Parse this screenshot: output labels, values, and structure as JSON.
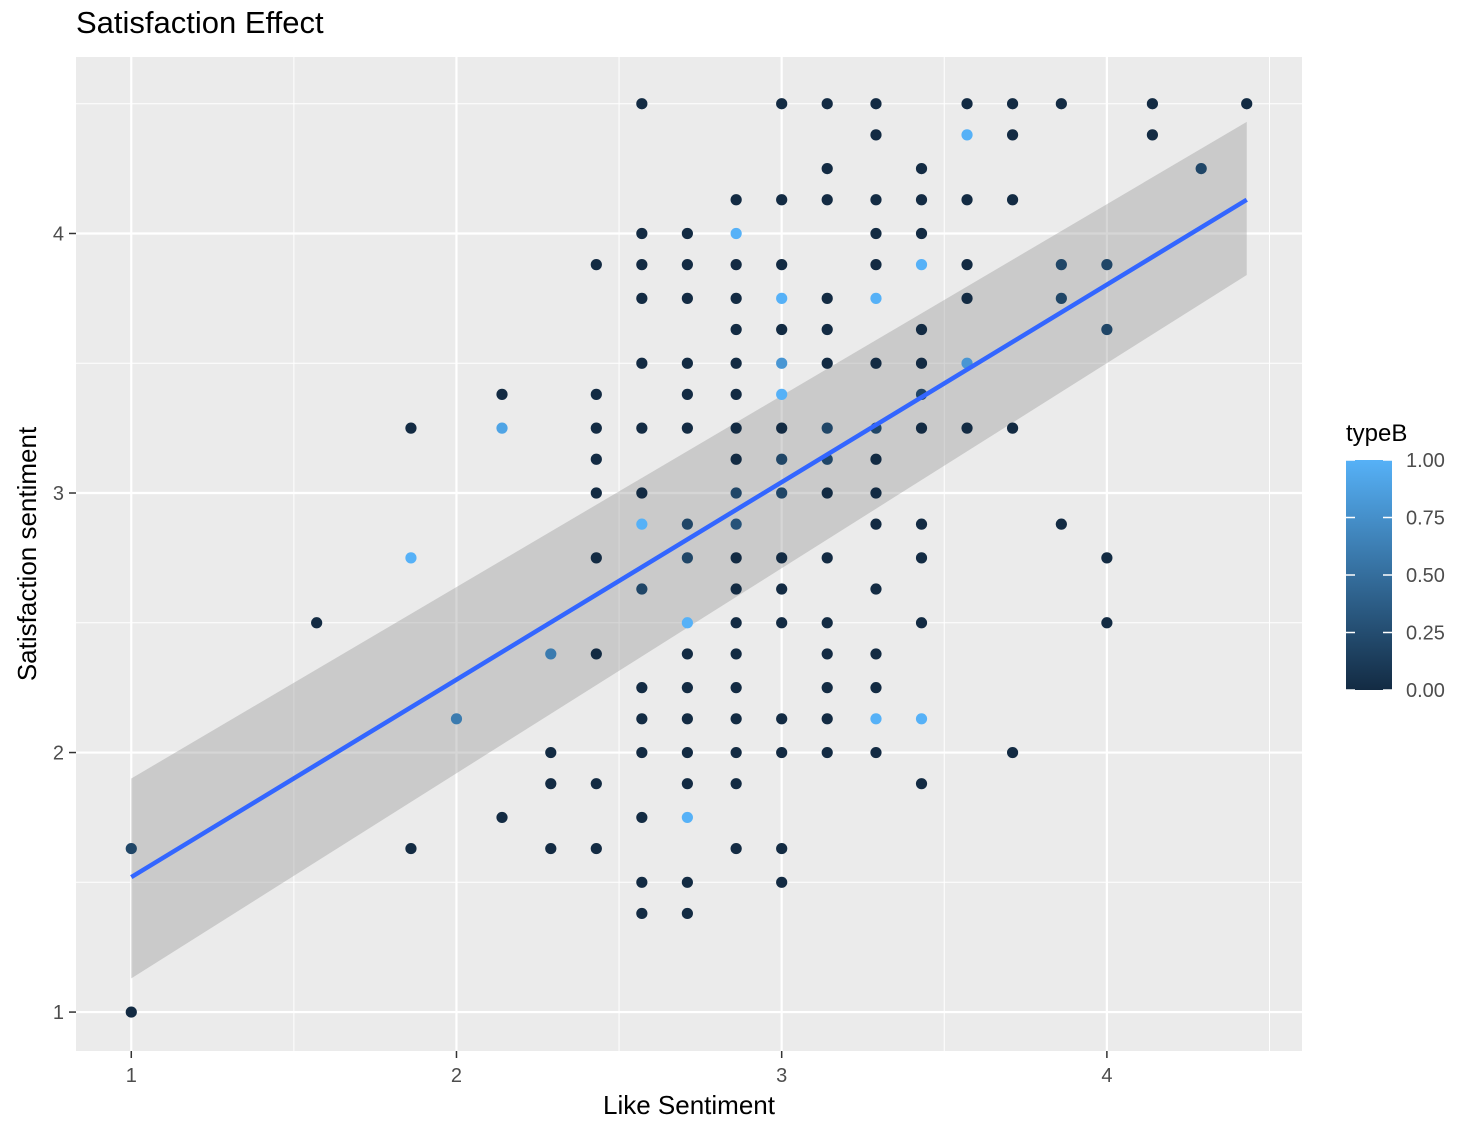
{
  "chart_data": {
    "type": "scatter",
    "title": "Satisfaction Effect",
    "xlabel": "Like Sentiment",
    "ylabel": "Satisfaction sentiment",
    "xlim": [
      0.83,
      4.6
    ],
    "ylim": [
      0.85,
      4.68
    ],
    "x_ticks": [
      1,
      2,
      3,
      4
    ],
    "y_ticks": [
      1,
      2,
      3,
      4
    ],
    "x_tick_labels": [
      "1",
      "2",
      "3",
      "4"
    ],
    "y_tick_labels": [
      "1",
      "2",
      "3",
      "4"
    ],
    "grid": true,
    "legend": {
      "title": "typeB",
      "position": "right",
      "labels": [
        "1.00",
        "0.75",
        "0.50",
        "0.25",
        "0.00"
      ],
      "values": [
        1.0,
        0.75,
        0.5,
        0.25,
        0.0
      ],
      "color_low": "#132B43",
      "color_high": "#56B1F7"
    },
    "regression": {
      "x": [
        1.0,
        4.43
      ],
      "y": [
        1.52,
        4.13
      ],
      "ci_lower": [
        1.13,
        3.84
      ],
      "ci_upper": [
        1.9,
        4.43
      ],
      "color": "#3366FF",
      "ci_color": "#999999"
    },
    "points": [
      {
        "x": 2.57,
        "y": 4.5,
        "c": 0
      },
      {
        "x": 3.0,
        "y": 4.5,
        "c": 0
      },
      {
        "x": 3.14,
        "y": 4.5,
        "c": 0
      },
      {
        "x": 3.29,
        "y": 4.5,
        "c": 0
      },
      {
        "x": 3.57,
        "y": 4.5,
        "c": 0
      },
      {
        "x": 3.71,
        "y": 4.5,
        "c": 0
      },
      {
        "x": 3.86,
        "y": 4.5,
        "c": 0
      },
      {
        "x": 4.14,
        "y": 4.5,
        "c": 0
      },
      {
        "x": 4.43,
        "y": 4.5,
        "c": 0
      },
      {
        "x": 3.29,
        "y": 4.38,
        "c": 0
      },
      {
        "x": 3.57,
        "y": 4.38,
        "c": 1
      },
      {
        "x": 3.71,
        "y": 4.38,
        "c": 0
      },
      {
        "x": 4.14,
        "y": 4.38,
        "c": 0
      },
      {
        "x": 3.14,
        "y": 4.25,
        "c": 0
      },
      {
        "x": 3.43,
        "y": 4.25,
        "c": 0
      },
      {
        "x": 4.29,
        "y": 4.25,
        "c": 0.2
      },
      {
        "x": 2.86,
        "y": 4.13,
        "c": 0
      },
      {
        "x": 3.0,
        "y": 4.13,
        "c": 0
      },
      {
        "x": 3.14,
        "y": 4.13,
        "c": 0
      },
      {
        "x": 3.29,
        "y": 4.13,
        "c": 0
      },
      {
        "x": 3.43,
        "y": 4.13,
        "c": 0
      },
      {
        "x": 3.57,
        "y": 4.13,
        "c": 0
      },
      {
        "x": 3.71,
        "y": 4.13,
        "c": 0
      },
      {
        "x": 2.57,
        "y": 4.0,
        "c": 0
      },
      {
        "x": 2.71,
        "y": 4.0,
        "c": 0
      },
      {
        "x": 2.86,
        "y": 4.0,
        "c": 1
      },
      {
        "x": 3.29,
        "y": 4.0,
        "c": 0
      },
      {
        "x": 3.43,
        "y": 4.0,
        "c": 0
      },
      {
        "x": 2.43,
        "y": 3.88,
        "c": 0
      },
      {
        "x": 2.57,
        "y": 3.88,
        "c": 0
      },
      {
        "x": 2.71,
        "y": 3.88,
        "c": 0
      },
      {
        "x": 2.86,
        "y": 3.88,
        "c": 0
      },
      {
        "x": 3.0,
        "y": 3.88,
        "c": 0
      },
      {
        "x": 3.29,
        "y": 3.88,
        "c": 0
      },
      {
        "x": 3.43,
        "y": 3.88,
        "c": 1
      },
      {
        "x": 3.57,
        "y": 3.88,
        "c": 0
      },
      {
        "x": 3.86,
        "y": 3.88,
        "c": 0.2
      },
      {
        "x": 4.0,
        "y": 3.88,
        "c": 0.2
      },
      {
        "x": 2.57,
        "y": 3.75,
        "c": 0
      },
      {
        "x": 2.71,
        "y": 3.75,
        "c": 0
      },
      {
        "x": 2.86,
        "y": 3.75,
        "c": 0
      },
      {
        "x": 3.0,
        "y": 3.75,
        "c": 1
      },
      {
        "x": 3.14,
        "y": 3.75,
        "c": 0
      },
      {
        "x": 3.29,
        "y": 3.75,
        "c": 1
      },
      {
        "x": 3.57,
        "y": 3.75,
        "c": 0
      },
      {
        "x": 3.86,
        "y": 3.75,
        "c": 0.2
      },
      {
        "x": 2.86,
        "y": 3.63,
        "c": 0
      },
      {
        "x": 3.0,
        "y": 3.63,
        "c": 0
      },
      {
        "x": 3.14,
        "y": 3.63,
        "c": 0
      },
      {
        "x": 3.43,
        "y": 3.63,
        "c": 0
      },
      {
        "x": 4.0,
        "y": 3.63,
        "c": 0.2
      },
      {
        "x": 2.57,
        "y": 3.5,
        "c": 0
      },
      {
        "x": 2.71,
        "y": 3.5,
        "c": 0
      },
      {
        "x": 2.86,
        "y": 3.5,
        "c": 0
      },
      {
        "x": 3.0,
        "y": 3.5,
        "c": 0.8
      },
      {
        "x": 3.14,
        "y": 3.5,
        "c": 0
      },
      {
        "x": 3.29,
        "y": 3.5,
        "c": 0
      },
      {
        "x": 3.43,
        "y": 3.5,
        "c": 0
      },
      {
        "x": 3.57,
        "y": 3.5,
        "c": 0.8
      },
      {
        "x": 2.14,
        "y": 3.38,
        "c": 0
      },
      {
        "x": 2.43,
        "y": 3.38,
        "c": 0
      },
      {
        "x": 2.71,
        "y": 3.38,
        "c": 0
      },
      {
        "x": 2.86,
        "y": 3.38,
        "c": 0
      },
      {
        "x": 3.0,
        "y": 3.38,
        "c": 1
      },
      {
        "x": 3.43,
        "y": 3.38,
        "c": 0.2
      },
      {
        "x": 1.86,
        "y": 3.25,
        "c": 0
      },
      {
        "x": 2.14,
        "y": 3.25,
        "c": 0.9
      },
      {
        "x": 2.43,
        "y": 3.25,
        "c": 0
      },
      {
        "x": 2.57,
        "y": 3.25,
        "c": 0
      },
      {
        "x": 2.71,
        "y": 3.25,
        "c": 0
      },
      {
        "x": 2.86,
        "y": 3.25,
        "c": 0
      },
      {
        "x": 3.0,
        "y": 3.25,
        "c": 0
      },
      {
        "x": 3.14,
        "y": 3.25,
        "c": 0.2
      },
      {
        "x": 3.29,
        "y": 3.25,
        "c": 0.2
      },
      {
        "x": 3.43,
        "y": 3.25,
        "c": 0
      },
      {
        "x": 3.57,
        "y": 3.25,
        "c": 0
      },
      {
        "x": 3.71,
        "y": 3.25,
        "c": 0
      },
      {
        "x": 2.43,
        "y": 3.13,
        "c": 0
      },
      {
        "x": 2.86,
        "y": 3.13,
        "c": 0
      },
      {
        "x": 3.0,
        "y": 3.13,
        "c": 0.2
      },
      {
        "x": 3.14,
        "y": 3.13,
        "c": 0.2
      },
      {
        "x": 3.29,
        "y": 3.13,
        "c": 0
      },
      {
        "x": 2.43,
        "y": 3.0,
        "c": 0
      },
      {
        "x": 2.57,
        "y": 3.0,
        "c": 0
      },
      {
        "x": 2.86,
        "y": 3.0,
        "c": 0.2
      },
      {
        "x": 3.0,
        "y": 3.0,
        "c": 0.2
      },
      {
        "x": 3.14,
        "y": 3.0,
        "c": 0
      },
      {
        "x": 3.29,
        "y": 3.0,
        "c": 0
      },
      {
        "x": 2.57,
        "y": 2.88,
        "c": 1
      },
      {
        "x": 2.71,
        "y": 2.88,
        "c": 0.2
      },
      {
        "x": 2.86,
        "y": 2.88,
        "c": 0.3
      },
      {
        "x": 3.29,
        "y": 2.88,
        "c": 0
      },
      {
        "x": 3.43,
        "y": 2.88,
        "c": 0
      },
      {
        "x": 3.86,
        "y": 2.88,
        "c": 0
      },
      {
        "x": 1.86,
        "y": 2.75,
        "c": 1
      },
      {
        "x": 2.43,
        "y": 2.75,
        "c": 0
      },
      {
        "x": 2.71,
        "y": 2.75,
        "c": 0.2
      },
      {
        "x": 2.86,
        "y": 2.75,
        "c": 0
      },
      {
        "x": 3.0,
        "y": 2.75,
        "c": 0
      },
      {
        "x": 3.14,
        "y": 2.75,
        "c": 0
      },
      {
        "x": 3.43,
        "y": 2.75,
        "c": 0
      },
      {
        "x": 4.0,
        "y": 2.75,
        "c": 0
      },
      {
        "x": 2.57,
        "y": 2.63,
        "c": 0.2
      },
      {
        "x": 2.86,
        "y": 2.63,
        "c": 0
      },
      {
        "x": 3.0,
        "y": 2.63,
        "c": 0
      },
      {
        "x": 3.29,
        "y": 2.63,
        "c": 0
      },
      {
        "x": 1.57,
        "y": 2.5,
        "c": 0
      },
      {
        "x": 2.71,
        "y": 2.5,
        "c": 1
      },
      {
        "x": 2.86,
        "y": 2.5,
        "c": 0
      },
      {
        "x": 3.0,
        "y": 2.5,
        "c": 0
      },
      {
        "x": 3.14,
        "y": 2.5,
        "c": 0
      },
      {
        "x": 3.43,
        "y": 2.5,
        "c": 0
      },
      {
        "x": 4.0,
        "y": 2.5,
        "c": 0
      },
      {
        "x": 2.29,
        "y": 2.38,
        "c": 0.6
      },
      {
        "x": 2.43,
        "y": 2.38,
        "c": 0
      },
      {
        "x": 2.71,
        "y": 2.38,
        "c": 0
      },
      {
        "x": 2.86,
        "y": 2.38,
        "c": 0
      },
      {
        "x": 3.14,
        "y": 2.38,
        "c": 0
      },
      {
        "x": 3.29,
        "y": 2.38,
        "c": 0
      },
      {
        "x": 2.57,
        "y": 2.25,
        "c": 0
      },
      {
        "x": 2.71,
        "y": 2.25,
        "c": 0
      },
      {
        "x": 2.86,
        "y": 2.25,
        "c": 0
      },
      {
        "x": 3.14,
        "y": 2.25,
        "c": 0
      },
      {
        "x": 3.29,
        "y": 2.25,
        "c": 0
      },
      {
        "x": 2.0,
        "y": 2.13,
        "c": 0.6
      },
      {
        "x": 2.57,
        "y": 2.13,
        "c": 0
      },
      {
        "x": 2.71,
        "y": 2.13,
        "c": 0
      },
      {
        "x": 2.86,
        "y": 2.13,
        "c": 0
      },
      {
        "x": 3.0,
        "y": 2.13,
        "c": 0
      },
      {
        "x": 3.14,
        "y": 2.13,
        "c": 0
      },
      {
        "x": 3.29,
        "y": 2.13,
        "c": 1
      },
      {
        "x": 3.43,
        "y": 2.13,
        "c": 1
      },
      {
        "x": 2.29,
        "y": 2.0,
        "c": 0
      },
      {
        "x": 2.57,
        "y": 2.0,
        "c": 0
      },
      {
        "x": 2.71,
        "y": 2.0,
        "c": 0
      },
      {
        "x": 2.86,
        "y": 2.0,
        "c": 0
      },
      {
        "x": 3.0,
        "y": 2.0,
        "c": 0
      },
      {
        "x": 3.14,
        "y": 2.0,
        "c": 0
      },
      {
        "x": 3.29,
        "y": 2.0,
        "c": 0
      },
      {
        "x": 3.71,
        "y": 2.0,
        "c": 0
      },
      {
        "x": 2.29,
        "y": 1.88,
        "c": 0
      },
      {
        "x": 2.43,
        "y": 1.88,
        "c": 0
      },
      {
        "x": 2.71,
        "y": 1.88,
        "c": 0
      },
      {
        "x": 2.86,
        "y": 1.88,
        "c": 0
      },
      {
        "x": 3.43,
        "y": 1.88,
        "c": 0
      },
      {
        "x": 2.14,
        "y": 1.75,
        "c": 0
      },
      {
        "x": 2.57,
        "y": 1.75,
        "c": 0
      },
      {
        "x": 2.71,
        "y": 1.75,
        "c": 1
      },
      {
        "x": 1.0,
        "y": 1.63,
        "c": 0.2
      },
      {
        "x": 1.86,
        "y": 1.63,
        "c": 0
      },
      {
        "x": 2.29,
        "y": 1.63,
        "c": 0
      },
      {
        "x": 2.43,
        "y": 1.63,
        "c": 0
      },
      {
        "x": 2.86,
        "y": 1.63,
        "c": 0
      },
      {
        "x": 3.0,
        "y": 1.63,
        "c": 0
      },
      {
        "x": 2.57,
        "y": 1.5,
        "c": 0
      },
      {
        "x": 2.71,
        "y": 1.5,
        "c": 0
      },
      {
        "x": 3.0,
        "y": 1.5,
        "c": 0
      },
      {
        "x": 2.57,
        "y": 1.38,
        "c": 0
      },
      {
        "x": 2.71,
        "y": 1.38,
        "c": 0
      },
      {
        "x": 1.0,
        "y": 1.0,
        "c": 0
      }
    ]
  }
}
